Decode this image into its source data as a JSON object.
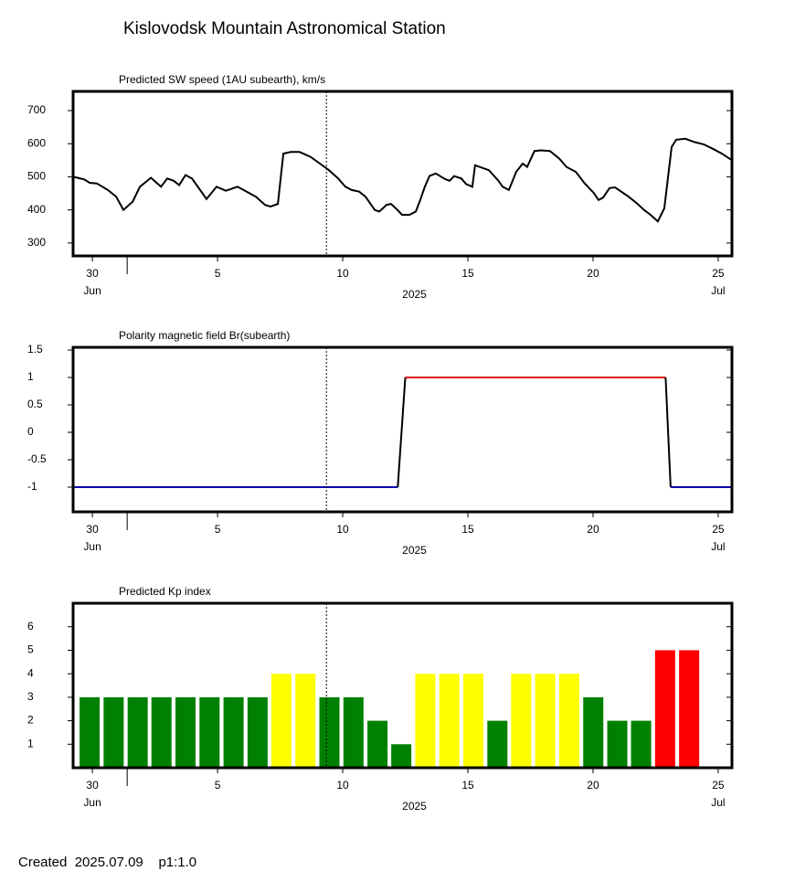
{
  "title": "Kislovodsk Mountain Astronomical Station",
  "footer": "Created  2025.07.09    p1:1.0",
  "chart_data": [
    {
      "type": "line",
      "title": "Predicted SW speed (1AU subearth), km/s",
      "color": "#000000",
      "x": [
        -0.77,
        -0.33,
        -0.11,
        0.18,
        0.62,
        0.95,
        1.24,
        1.61,
        1.9,
        2.34,
        2.74,
        2.99,
        3.25,
        3.47,
        3.72,
        3.98,
        4.56,
        4.96,
        5.33,
        5.8,
        6.53,
        6.9,
        7.12,
        7.41,
        7.63,
        7.92,
        8.28,
        8.72,
        9.09,
        9.45,
        9.82,
        10.11,
        10.36,
        10.66,
        10.91,
        11.28,
        11.46,
        11.75,
        11.93,
        12.19,
        12.37,
        12.66,
        12.92,
        13.1,
        13.28,
        13.47,
        13.72,
        14.09,
        14.27,
        14.45,
        14.74,
        14.93,
        15.18,
        15.29,
        15.84,
        16.2,
        16.39,
        16.64,
        16.93,
        17.19,
        17.37,
        17.66,
        17.92,
        18.28,
        18.65,
        18.94,
        19.31,
        19.67,
        20.04,
        20.22,
        20.4,
        20.66,
        20.88,
        21.42,
        21.75,
        22.04,
        22.3,
        22.59,
        22.85,
        23.14,
        23.32,
        23.69,
        24.05,
        24.42,
        24.78,
        25.15,
        25.55
      ],
      "values": [
        500,
        492,
        482,
        480,
        460,
        440,
        400,
        425,
        470,
        497,
        470,
        495,
        488,
        475,
        505,
        495,
        433,
        470,
        458,
        470,
        440,
        415,
        410,
        418,
        570,
        575,
        575,
        560,
        540,
        520,
        495,
        470,
        460,
        455,
        440,
        400,
        395,
        415,
        418,
        400,
        385,
        385,
        395,
        430,
        470,
        503,
        510,
        493,
        488,
        502,
        495,
        478,
        470,
        535,
        520,
        490,
        470,
        460,
        515,
        540,
        530,
        578,
        580,
        578,
        555,
        530,
        515,
        480,
        450,
        430,
        437,
        466,
        468,
        440,
        420,
        400,
        385,
        365,
        405,
        590,
        612,
        615,
        605,
        598,
        585,
        570,
        550
      ],
      "xlim": [
        -0.77,
        25.55
      ],
      "ylim": [
        261,
        758
      ],
      "yticks": [
        300,
        400,
        500,
        600,
        700
      ],
      "xticks": [
        {
          "value": 0,
          "label": "30"
        },
        5,
        10,
        15,
        20,
        25
      ],
      "x_sublabels": [
        {
          "value": 0,
          "label": "Jun"
        },
        {
          "value": 25,
          "label": "Jul"
        }
      ],
      "month_ticks": [
        1.39
      ],
      "xlabel": "2025",
      "vline": 9.35
    },
    {
      "type": "line",
      "title": "Polarity magnetic field  Br(subearth)",
      "color": "#000000",
      "x": [
        -0.77,
        12.2,
        12.5,
        22.9,
        23.1,
        25.55
      ],
      "values": [
        -1,
        -1,
        1,
        1,
        -1,
        -1
      ],
      "segment_colors": [
        "#0000b0",
        "#000000",
        "#e00000",
        "#000000",
        "#0000b0"
      ],
      "xlim": [
        -0.77,
        25.55
      ],
      "ylim": [
        -1.45,
        1.55
      ],
      "yticks": [
        1.5,
        1,
        0.5,
        0,
        -0.5,
        -1
      ],
      "xticks": [
        {
          "value": 0,
          "label": "30"
        },
        5,
        10,
        15,
        20,
        25
      ],
      "x_sublabels": [
        {
          "value": 0,
          "label": "Jun"
        },
        {
          "value": 25,
          "label": "Jul"
        }
      ],
      "month_ticks": [
        1.39
      ],
      "xlabel": "2025",
      "vline": 9.35
    },
    {
      "type": "bar",
      "title": "Predicted Kp index",
      "x": [
        -0.11,
        0.85,
        1.81,
        2.76,
        3.72,
        4.68,
        5.64,
        6.6,
        7.55,
        8.51,
        9.47,
        10.43,
        11.39,
        12.34,
        13.3,
        14.26,
        15.22,
        16.18,
        17.13,
        18.09,
        19.05,
        20.01,
        20.97,
        21.92,
        22.88,
        23.84
      ],
      "values": [
        3,
        3,
        3,
        3,
        3,
        3,
        3,
        3,
        4,
        4,
        3,
        3,
        2,
        1,
        4,
        4,
        4,
        2,
        4,
        4,
        4,
        3,
        2,
        2,
        5,
        5
      ],
      "colors": [
        "#008000",
        "#008000",
        "#008000",
        "#008000",
        "#008000",
        "#008000",
        "#008000",
        "#008000",
        "#ffff00",
        "#ffff00",
        "#008000",
        "#008000",
        "#008000",
        "#008000",
        "#ffff00",
        "#ffff00",
        "#ffff00",
        "#008000",
        "#ffff00",
        "#ffff00",
        "#ffff00",
        "#008000",
        "#008000",
        "#008000",
        "#ff0000",
        "#ff0000"
      ],
      "xlim": [
        -0.77,
        25.55
      ],
      "ylim": [
        0,
        7
      ],
      "yticks": [
        1,
        2,
        3,
        4,
        5,
        6
      ],
      "xticks": [
        {
          "value": 0,
          "label": "30"
        },
        5,
        10,
        15,
        20,
        25
      ],
      "x_sublabels": [
        {
          "value": 0,
          "label": "Jun"
        },
        {
          "value": 25,
          "label": "Jul"
        }
      ],
      "month_ticks": [
        1.39
      ],
      "xlabel": "2025",
      "vline": 9.35
    }
  ]
}
